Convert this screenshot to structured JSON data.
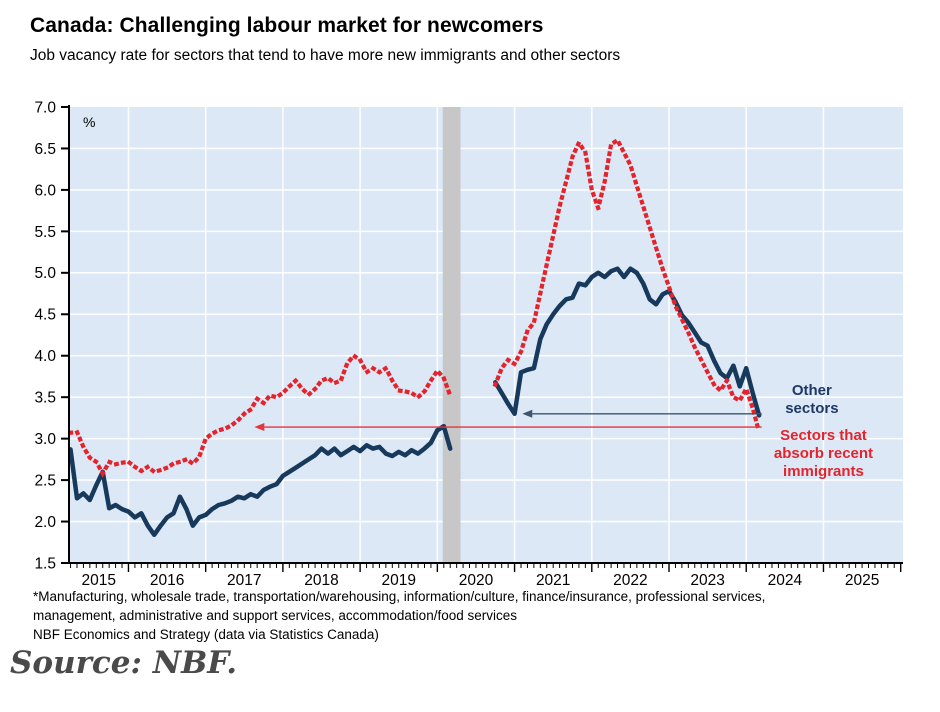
{
  "page": {
    "title": "Canada: Challenging labour market for newcomers",
    "subtitle": "Job vacancy rate for sectors that tend to have more new immigrants and other sectors",
    "footnote_lines": [
      "*Manufacturing, wholesale trade, transportation/warehousing, information/culture, finance/insurance, professional services,",
      "management, administrative and support services, accommodation/food services",
      "NBF Economics and Strategy (data via Statistics Canada)"
    ],
    "source": "Source: NBF."
  },
  "chart_data": {
    "type": "line",
    "title": "Canada: Challenging labour market for newcomers",
    "subtitle": "Job vacancy rate for sectors that tend to have more new immigrants and other sectors",
    "unit_label": "%",
    "frequency": "monthly",
    "x_axis": {
      "min": 2015.23,
      "max": 2026.03,
      "year_labels": [
        "2015",
        "2016",
        "2017",
        "2018",
        "2019",
        "2020",
        "2021",
        "2022",
        "2023",
        "2024",
        "2025"
      ],
      "gridline_years": [
        2016,
        2017,
        2018,
        2019,
        2020,
        2021,
        2022,
        2023,
        2024,
        2025
      ]
    },
    "y_axis": {
      "min": 1.5,
      "max": 7.0,
      "tick_step": 0.5,
      "tick_decimals": 1
    },
    "colors": {
      "plot_bg": "#dce8f6",
      "gridline": "#ffffff",
      "gap_band": "#c7c7c7",
      "axis": "#000000",
      "other_sectors": "#17395c",
      "immigrant_sectors": "#e3242c"
    },
    "gap_band": {
      "from": 2020.07,
      "to": 2020.3,
      "note": "survey suspension gap"
    },
    "series": [
      {
        "name": "Other sectors",
        "color": "#17395c",
        "style": "solid",
        "segments": [
          {
            "start": 2015.25,
            "start_label": "2015-04",
            "step_years": 0.0833333,
            "values": [
              2.87,
              2.28,
              2.34,
              2.26,
              2.44,
              2.6,
              2.16,
              2.2,
              2.15,
              2.12,
              2.05,
              2.1,
              1.95,
              1.84,
              1.95,
              2.05,
              2.1,
              2.3,
              2.15,
              1.95,
              2.05,
              2.08,
              2.15,
              2.2,
              2.22,
              2.25,
              2.3,
              2.28,
              2.33,
              2.3,
              2.38,
              2.42,
              2.45,
              2.55,
              2.6,
              2.65,
              2.7,
              2.75,
              2.8,
              2.88,
              2.82,
              2.88,
              2.8,
              2.85,
              2.9,
              2.85,
              2.92,
              2.88,
              2.9,
              2.82,
              2.79,
              2.84,
              2.8,
              2.86,
              2.82,
              2.88,
              2.95,
              3.1,
              3.15,
              2.88
            ]
          },
          {
            "start": 2020.75,
            "start_label": "2020-10",
            "step_years": 0.0833333,
            "values": [
              3.68,
              3.55,
              3.42,
              3.3,
              3.8,
              3.83,
              3.85,
              4.2,
              4.38,
              4.5,
              4.6,
              4.68,
              4.7,
              4.87,
              4.85,
              4.95,
              5.0,
              4.95,
              5.02,
              5.05,
              4.95,
              5.05,
              5.0,
              4.87,
              4.68,
              4.62,
              4.74,
              4.78,
              4.65,
              4.49,
              4.4,
              4.28,
              4.16,
              4.12,
              3.94,
              3.79,
              3.73,
              3.88,
              3.63,
              3.85,
              3.55,
              3.28
            ]
          }
        ]
      },
      {
        "name": "Sectors that absorb recent immigrants",
        "color": "#e3242c",
        "style": "dotted",
        "segments": [
          {
            "start": 2015.25,
            "start_label": "2015-04",
            "step_years": 0.0833333,
            "values": [
              3.07,
              3.08,
              2.9,
              2.77,
              2.72,
              2.58,
              2.72,
              2.69,
              2.71,
              2.72,
              2.66,
              2.61,
              2.66,
              2.6,
              2.62,
              2.65,
              2.7,
              2.72,
              2.75,
              2.7,
              2.78,
              3.0,
              3.06,
              3.1,
              3.12,
              3.16,
              3.22,
              3.3,
              3.35,
              3.48,
              3.43,
              3.52,
              3.5,
              3.55,
              3.63,
              3.7,
              3.6,
              3.53,
              3.6,
              3.7,
              3.73,
              3.67,
              3.7,
              3.91,
              4.0,
              3.95,
              3.8,
              3.85,
              3.8,
              3.85,
              3.7,
              3.58,
              3.57,
              3.55,
              3.5,
              3.57,
              3.7,
              3.82,
              3.73,
              3.52
            ]
          },
          {
            "start": 2020.75,
            "start_label": "2020-10",
            "step_years": 0.0833333,
            "values": [
              3.65,
              3.85,
              3.95,
              3.9,
              4.05,
              4.3,
              4.4,
              4.75,
              5.1,
              5.45,
              5.8,
              6.1,
              6.4,
              6.57,
              6.45,
              6.0,
              5.78,
              6.1,
              6.55,
              6.6,
              6.45,
              6.3,
              6.05,
              5.8,
              5.55,
              5.3,
              5.05,
              4.83,
              4.6,
              4.44,
              4.28,
              4.1,
              3.95,
              3.8,
              3.65,
              3.58,
              3.7,
              3.5,
              3.46,
              3.6,
              3.37,
              3.08
            ]
          }
        ]
      }
    ],
    "annotations": {
      "labels": [
        {
          "name": "other-sectors-label",
          "lines": [
            "Other",
            "sectors"
          ],
          "color": "#1f3864",
          "x_year": 2024.85,
          "y_value": 3.47
        },
        {
          "name": "immigrant-sectors-label",
          "lines": [
            "Sectors that",
            "absorb recent",
            "immigrants"
          ],
          "color": "#e3242c",
          "x_year": 2025.0,
          "y_value": 2.82
        }
      ],
      "arrows": [
        {
          "name": "other-sectors-arrow",
          "color": "#3d5570",
          "y_value": 3.3,
          "from_year": 2024.2,
          "to_year": 2021.1
        },
        {
          "name": "immigrant-sectors-arrow",
          "color": "#e3363d",
          "y_value": 3.14,
          "from_year": 2024.2,
          "to_year": 2017.63
        }
      ]
    },
    "legend_position": "right-inside",
    "grid": true
  }
}
